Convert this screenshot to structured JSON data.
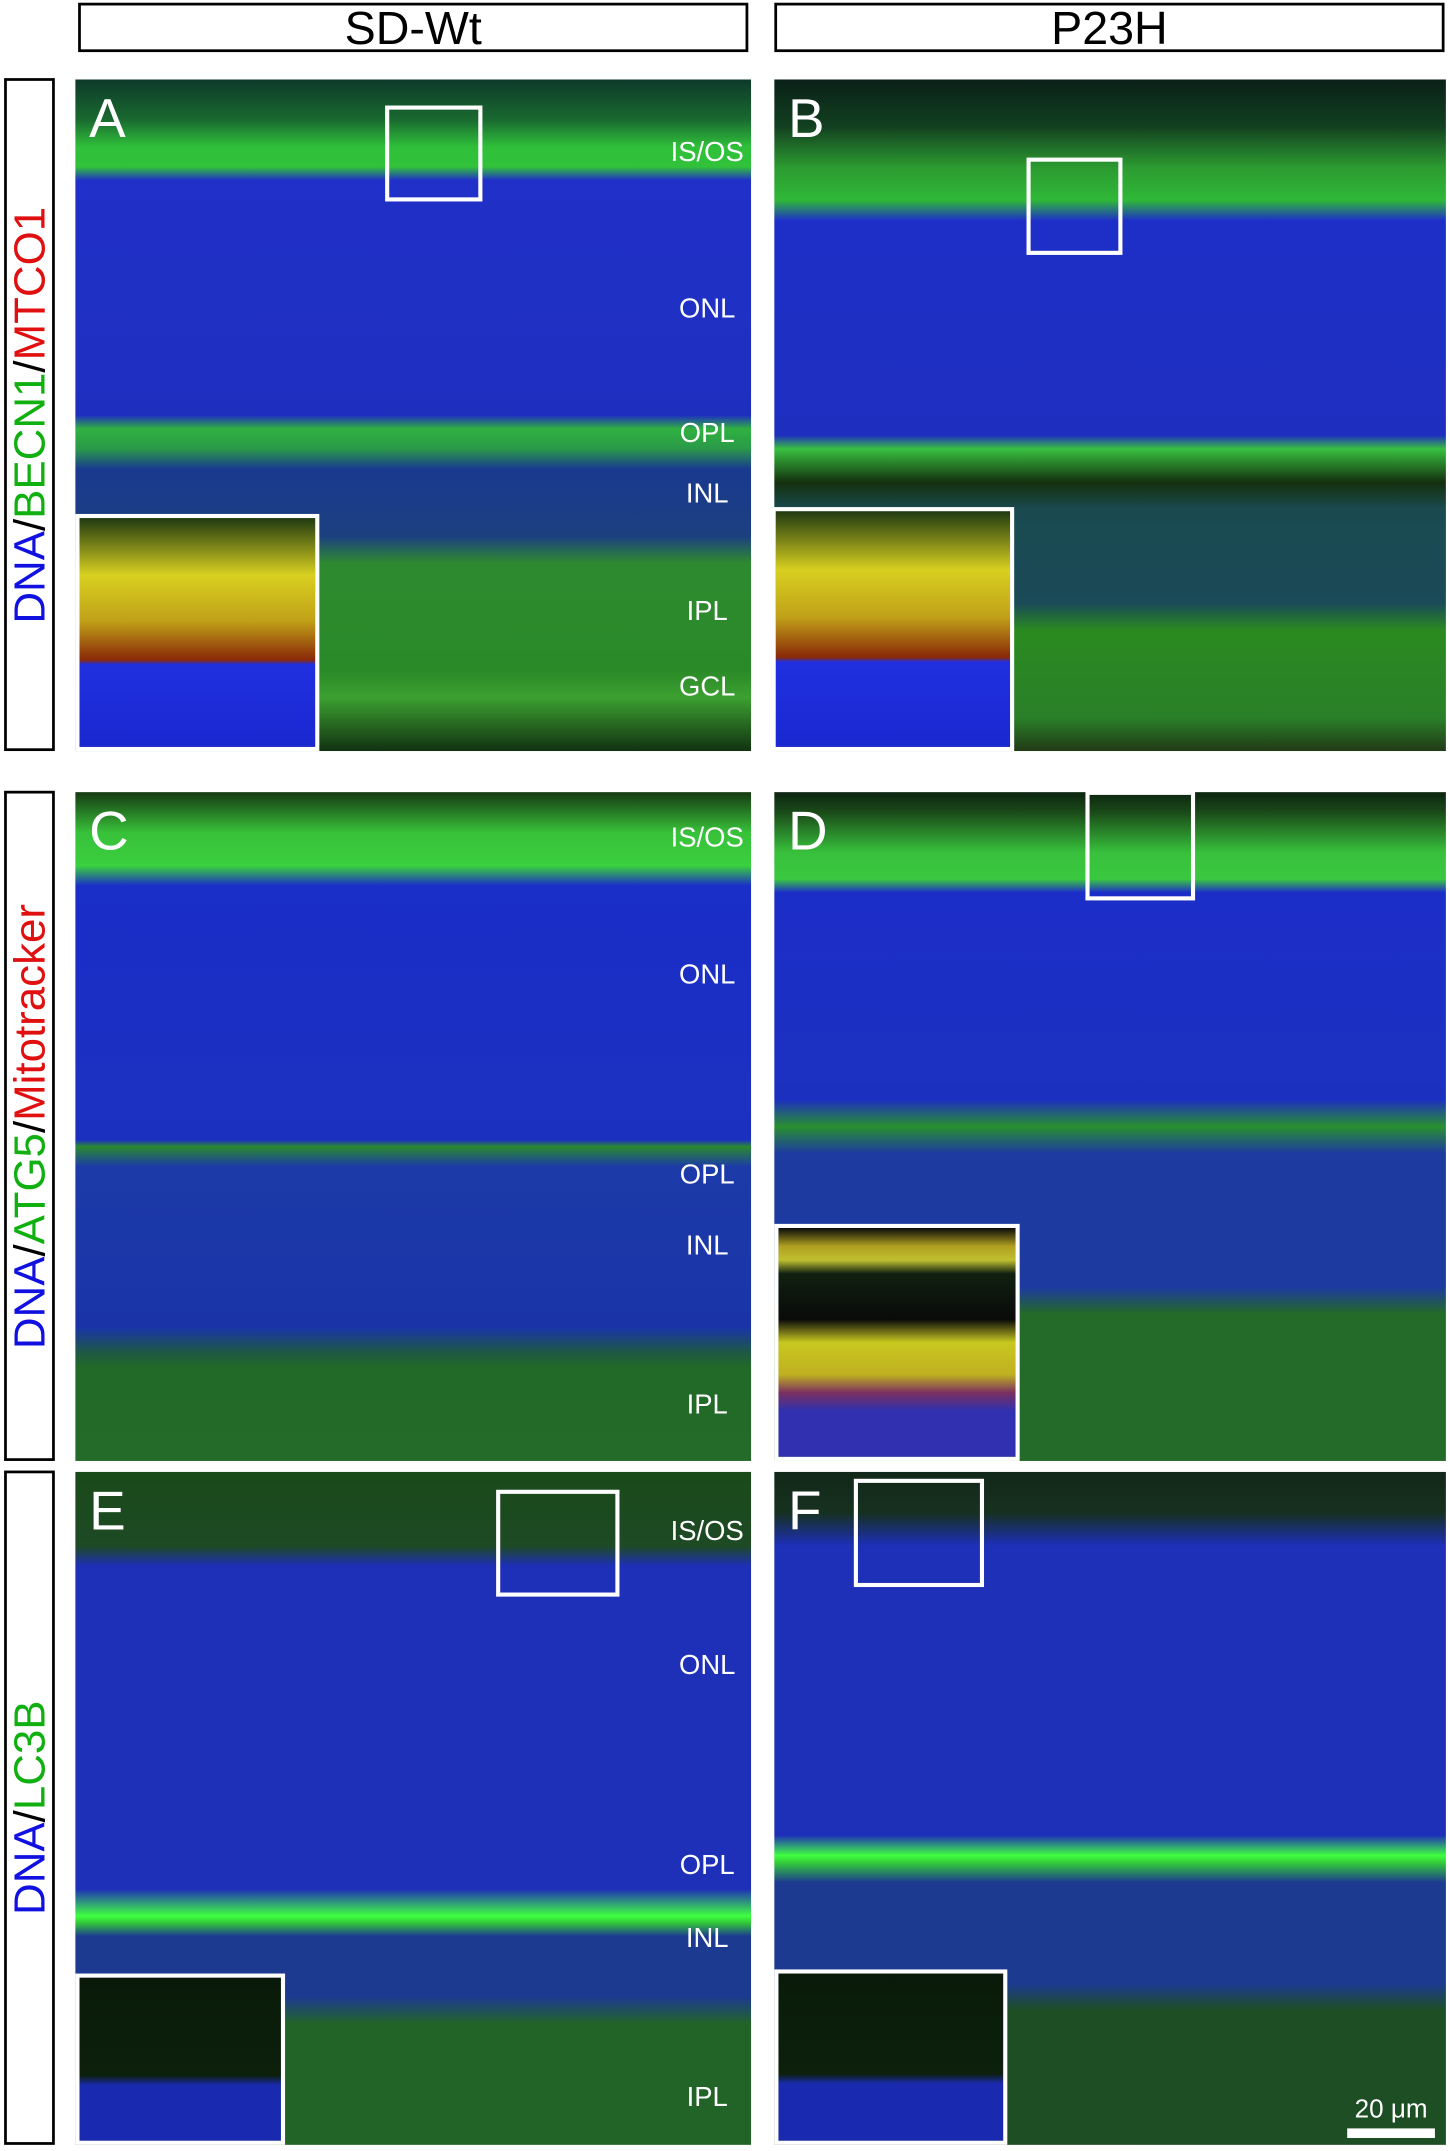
{
  "header": {
    "columns": [
      "SD-Wt",
      "P23H"
    ]
  },
  "rows": [
    {
      "label": [
        "DNA",
        "/",
        "BECN1",
        "/",
        "MTCO1"
      ],
      "panels": [
        {
          "letter": "A",
          "layers": [
            "IS/OS",
            "ONL",
            "OPL",
            "INL",
            "IPL",
            "GCL"
          ]
        },
        {
          "letter": "B"
        }
      ]
    },
    {
      "label": [
        "DNA",
        "/",
        "ATG5",
        "/",
        "Mitotracker"
      ],
      "panels": [
        {
          "letter": "C",
          "layers": [
            "IS/OS",
            "ONL",
            "OPL",
            "INL",
            "IPL"
          ]
        },
        {
          "letter": "D"
        }
      ]
    },
    {
      "label": [
        "DNA",
        "/",
        "LC3B"
      ],
      "panels": [
        {
          "letter": "E",
          "layers": [
            "IS/OS",
            "ONL",
            "OPL",
            "INL",
            "IPL"
          ]
        },
        {
          "letter": "F"
        }
      ]
    }
  ],
  "scale_bar": "20 μm"
}
